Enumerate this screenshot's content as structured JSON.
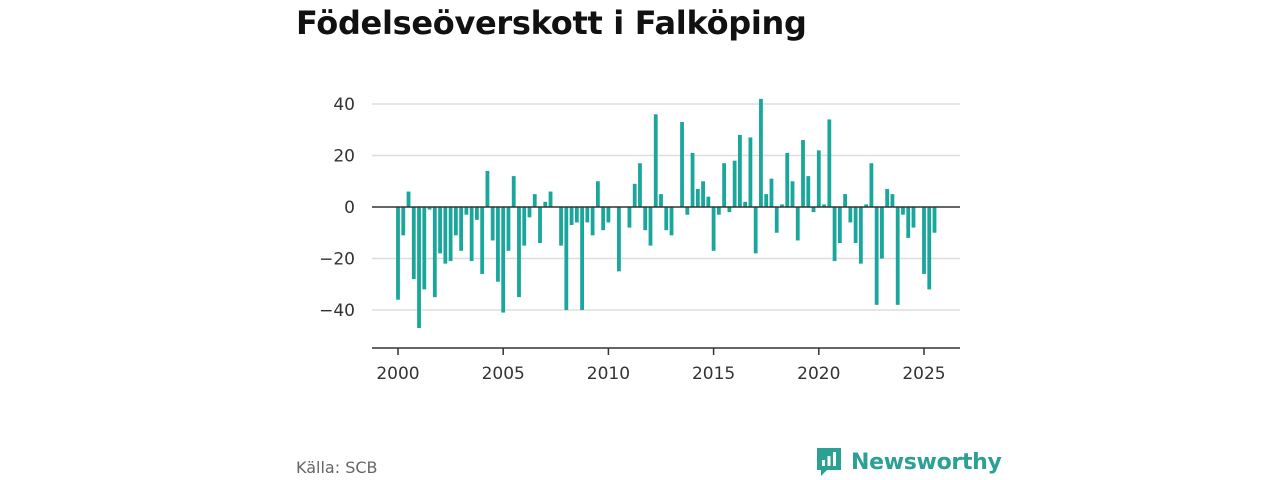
{
  "header": {
    "title": "Födelseöverskott i Falköping"
  },
  "footer": {
    "source": "Källa: SCB",
    "brand": "Newsworthy"
  },
  "colors": {
    "bar": "#1aa79b",
    "brand": "#2aa193",
    "grid": "#dddddd",
    "axis": "#333333"
  },
  "icons": {
    "brand": "newsworthy-logo-icon"
  },
  "chart_data": {
    "type": "bar",
    "title": "Födelseöverskott i Falköping",
    "xlabel": "",
    "ylabel": "",
    "grid": true,
    "ylim": [
      -53,
      45
    ],
    "xlim": [
      2000.0,
      2026.75
    ],
    "y_ticks": [
      40,
      20,
      0,
      -20,
      -40
    ],
    "y_tick_labels": [
      "40",
      "20",
      "0",
      "−20",
      "−40"
    ],
    "x_ticks": [
      2000,
      2005,
      2010,
      2015,
      2020,
      2025
    ],
    "x_tick_labels": [
      "2000",
      "2005",
      "2010",
      "2015",
      "2020",
      "2025"
    ],
    "x_start": 2000.0,
    "x_step": 0.25,
    "values": [
      -36,
      -11,
      6,
      -28,
      -47,
      -32,
      -1,
      -35,
      -18,
      -22,
      -21,
      -11,
      -17,
      -3,
      -21,
      -5,
      -26,
      14,
      -13,
      -29,
      -41,
      -17,
      12,
      -35,
      -15,
      -4,
      5,
      -14,
      2,
      6,
      0,
      -15,
      -40,
      -7,
      -6,
      -40,
      -6,
      -11,
      10,
      -9,
      -6,
      0,
      -25,
      0,
      -8,
      9,
      17,
      -9,
      -15,
      36,
      5,
      -9,
      -11,
      0,
      33,
      -3,
      21,
      7,
      10,
      4,
      -17,
      -3,
      17,
      -2,
      18,
      28,
      2,
      27,
      -18,
      42,
      5,
      11,
      -10,
      1,
      21,
      10,
      -13,
      26,
      12,
      -2,
      22,
      1,
      34,
      -21,
      -14,
      5,
      -6,
      -14,
      -22,
      1,
      17,
      -38,
      -20,
      7,
      5,
      -38,
      -3,
      -12,
      -8,
      0,
      -26,
      -32,
      -10
    ]
  }
}
